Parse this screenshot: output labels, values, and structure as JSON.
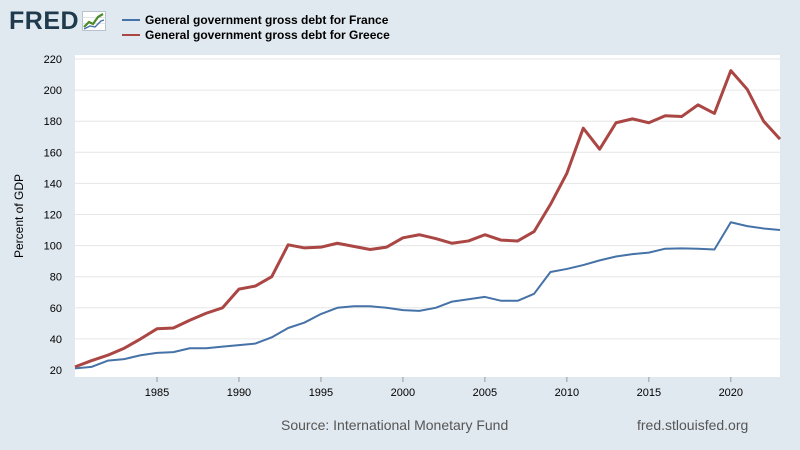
{
  "logo": {
    "text": "FRED"
  },
  "footer": {
    "source": "Source: International Monetary Fund",
    "url": "fred.stlouisfed.org"
  },
  "chart_data": {
    "type": "line",
    "title": "",
    "xlabel": "",
    "ylabel": "Percent of GDP",
    "xlim": [
      1980,
      2023
    ],
    "ylim": [
      20,
      220
    ],
    "yticks": [
      20,
      40,
      60,
      80,
      100,
      120,
      140,
      160,
      180,
      200,
      220
    ],
    "xticks": [
      1985,
      1990,
      1995,
      2000,
      2005,
      2010,
      2015,
      2020
    ],
    "grid": true,
    "legend_position": "top-left",
    "x": [
      1980,
      1981,
      1982,
      1983,
      1984,
      1985,
      1986,
      1987,
      1988,
      1989,
      1990,
      1991,
      1992,
      1993,
      1994,
      1995,
      1996,
      1997,
      1998,
      1999,
      2000,
      2001,
      2002,
      2003,
      2004,
      2005,
      2006,
      2007,
      2008,
      2009,
      2010,
      2011,
      2012,
      2013,
      2014,
      2015,
      2016,
      2017,
      2018,
      2019,
      2020,
      2021,
      2022,
      2023
    ],
    "series": [
      {
        "name": "General government gross debt for France",
        "color": "#4572a7",
        "values": [
          21,
          22,
          26,
          27,
          29.5,
          31,
          31.5,
          34,
          34,
          35,
          36,
          37,
          41,
          47,
          50.5,
          56,
          60,
          61,
          61,
          60,
          58.5,
          58,
          60,
          64,
          65.5,
          67,
          64.5,
          64.5,
          69,
          83,
          85,
          87.5,
          90.5,
          93,
          94.5,
          95.5,
          98,
          98.2,
          98,
          97.5,
          115,
          112.5,
          111,
          110
        ]
      },
      {
        "name": "General government gross debt for Greece",
        "color": "#aa4643",
        "values": [
          22,
          26,
          29.5,
          34,
          40,
          46.5,
          47,
          52,
          56.5,
          60,
          72,
          74,
          80,
          100.5,
          98.5,
          99,
          101.5,
          99.5,
          97.5,
          99,
          105,
          107,
          104.5,
          101.5,
          103,
          107,
          103.5,
          103,
          109,
          126.5,
          146.5,
          175.5,
          162,
          179,
          181.5,
          179,
          183.5,
          183,
          190.5,
          185,
          212.5,
          200.5,
          180,
          168.5
        ]
      }
    ]
  }
}
